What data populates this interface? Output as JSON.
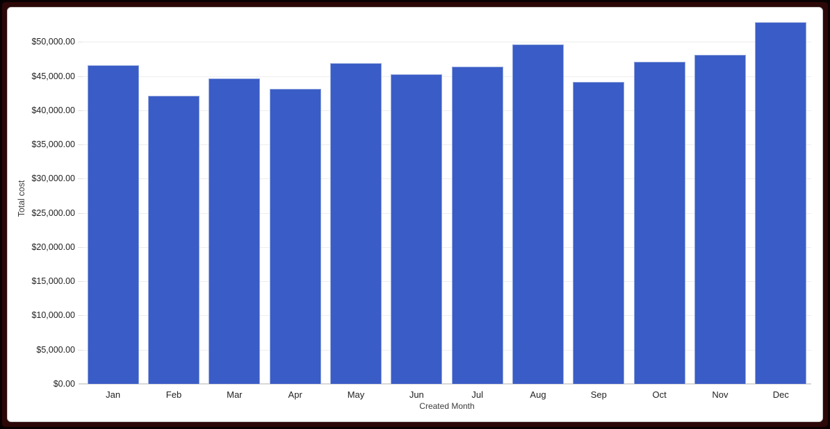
{
  "frame": {
    "outer_color": "#0a0202",
    "mat_color": "#2c0808",
    "panel_color": "#ffffff"
  },
  "chart_data": {
    "type": "bar",
    "xlabel": "Created Month",
    "ylabel": "Total cost",
    "categories": [
      "Jan",
      "Feb",
      "Mar",
      "Apr",
      "May",
      "Jun",
      "Jul",
      "Aug",
      "Sep",
      "Oct",
      "Nov",
      "Dec"
    ],
    "values": [
      46550,
      42100,
      44700,
      43100,
      46850,
      45250,
      46400,
      49650,
      44100,
      47100,
      48100,
      52900
    ],
    "ylim": [
      0,
      55000
    ],
    "y_ticks": [
      0,
      5000,
      10000,
      15000,
      20000,
      25000,
      30000,
      35000,
      40000,
      45000,
      50000
    ],
    "y_tick_labels": [
      "$0.00",
      "$5,000.00",
      "$10,000.00",
      "$15,000.00",
      "$20,000.00",
      "$25,000.00",
      "$30,000.00",
      "$35,000.00",
      "$40,000.00",
      "$45,000.00",
      "$50,000.00"
    ],
    "grid": true,
    "legend": "none",
    "bar_color": "#3a5cc6",
    "bar_stroke": "#94a8de",
    "gridline_color": "#ededed",
    "tick_text_color": "#212121",
    "axis_title_color": "#3c3c3c"
  }
}
